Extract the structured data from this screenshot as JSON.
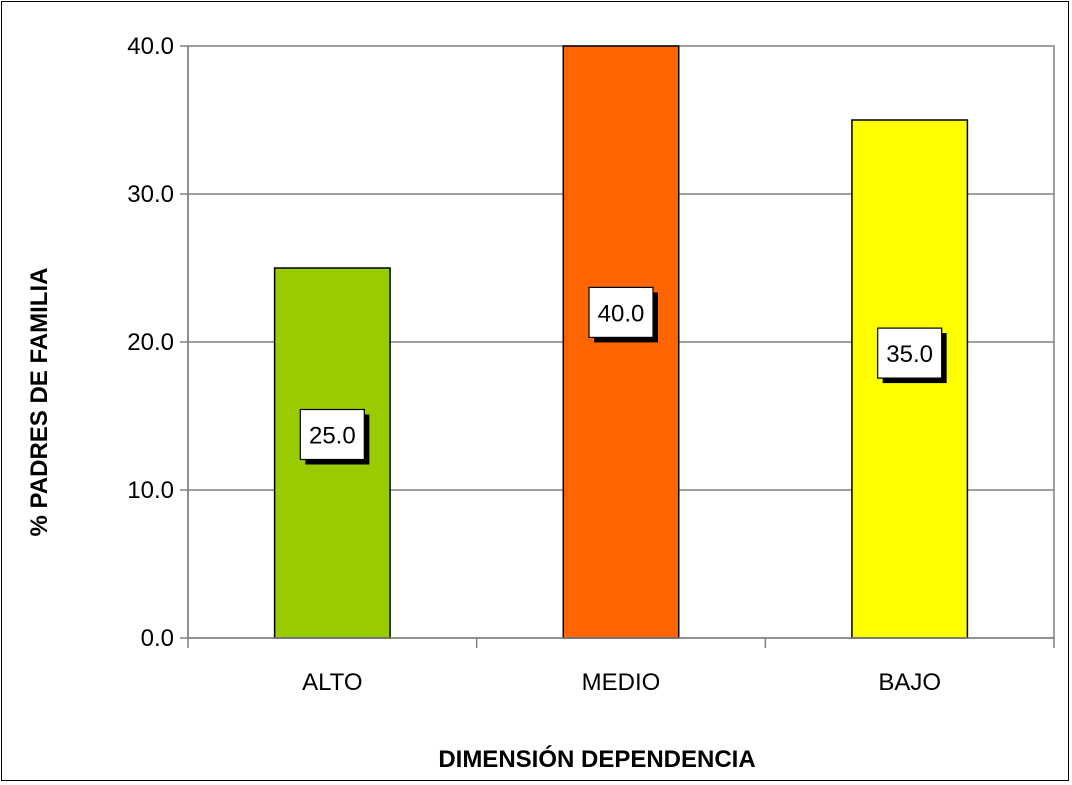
{
  "chart_data": {
    "type": "bar",
    "categories": [
      "ALTO",
      "MEDIO",
      "BAJO"
    ],
    "values": [
      25.0,
      40.0,
      35.0
    ],
    "data_labels": [
      "25.0",
      "40.0",
      "35.0"
    ],
    "colors": [
      "#99CC00",
      "#FF6600",
      "#FFFF00"
    ],
    "xlabel": "DIMENSIÓN DEPENDENCIA",
    "ylabel": "% PADRES DE FAMILIA",
    "ylim": [
      0,
      40
    ],
    "yticks": [
      "0.0",
      "10.0",
      "20.0",
      "30.0",
      "40.0"
    ],
    "grid": true,
    "legend": "none",
    "plot_border_color": "#808080",
    "gridline_color": "#808080"
  }
}
